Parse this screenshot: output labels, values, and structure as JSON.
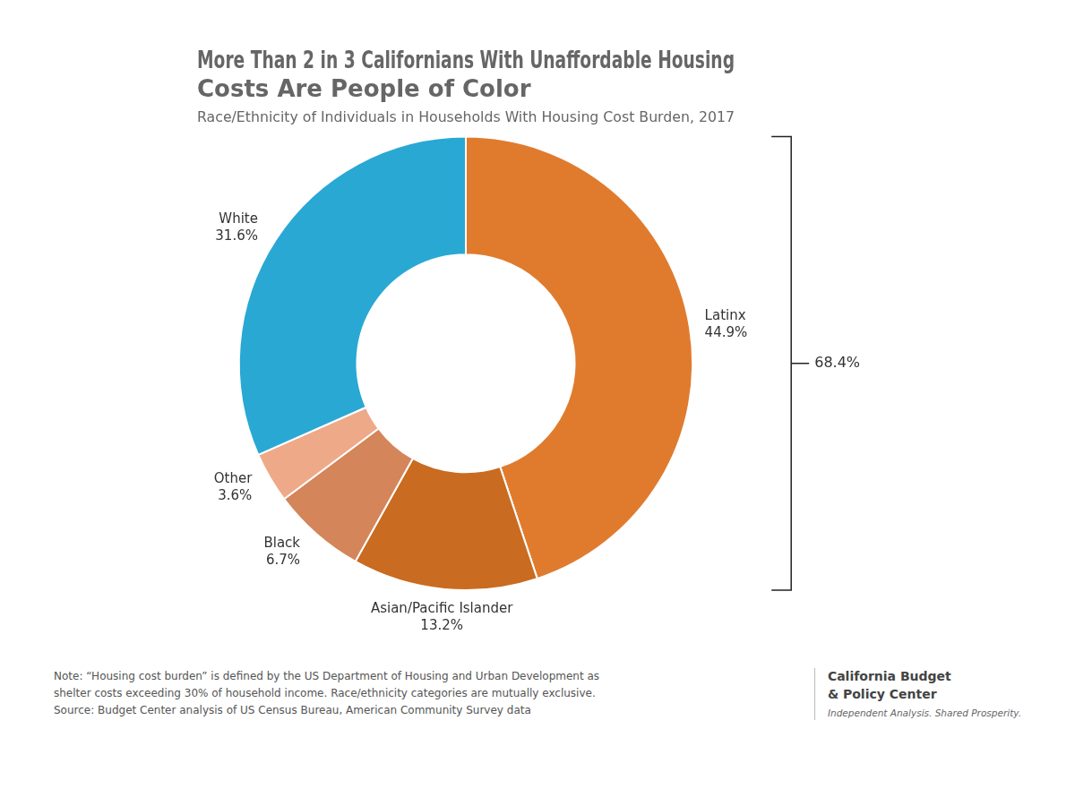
{
  "chart_data": {
    "type": "doughnut",
    "title": "More Than 2 in 3 Californians With Unaffordable Housing\nCosts Are People of Color",
    "subtitle": "Race/Ethnicity of Individuals in Households With Housing Cost Burden, 2017",
    "categories": [
      "Latinx",
      "Asian/Pacific Islander",
      "Black",
      "Other",
      "White"
    ],
    "values": [
      44.9,
      13.2,
      6.7,
      3.6,
      31.6
    ],
    "value_labels": [
      "44.9%",
      "13.2%",
      "6.7%",
      "3.6%",
      "31.6%"
    ],
    "colors": [
      "#e07b2e",
      "#c96b20",
      "#d4855a",
      "#eeaa88",
      "#29a8d4"
    ],
    "data_labels": true,
    "legend": false,
    "annotations": [
      "68.4%"
    ],
    "note": "Note: “Housing cost burden” is defined by the US Department of Housing and Urban Development as\nshelter costs exceeding 30% of household income. Race/ethnicity categories are mutually exclusive.\nSource: Budget Center analysis of US Census Bureau, American Community Survey data",
    "logo_text": [
      "California Budget",
      "& Policy Center",
      "Independent Analysis. Shared Prosperity."
    ]
  }
}
